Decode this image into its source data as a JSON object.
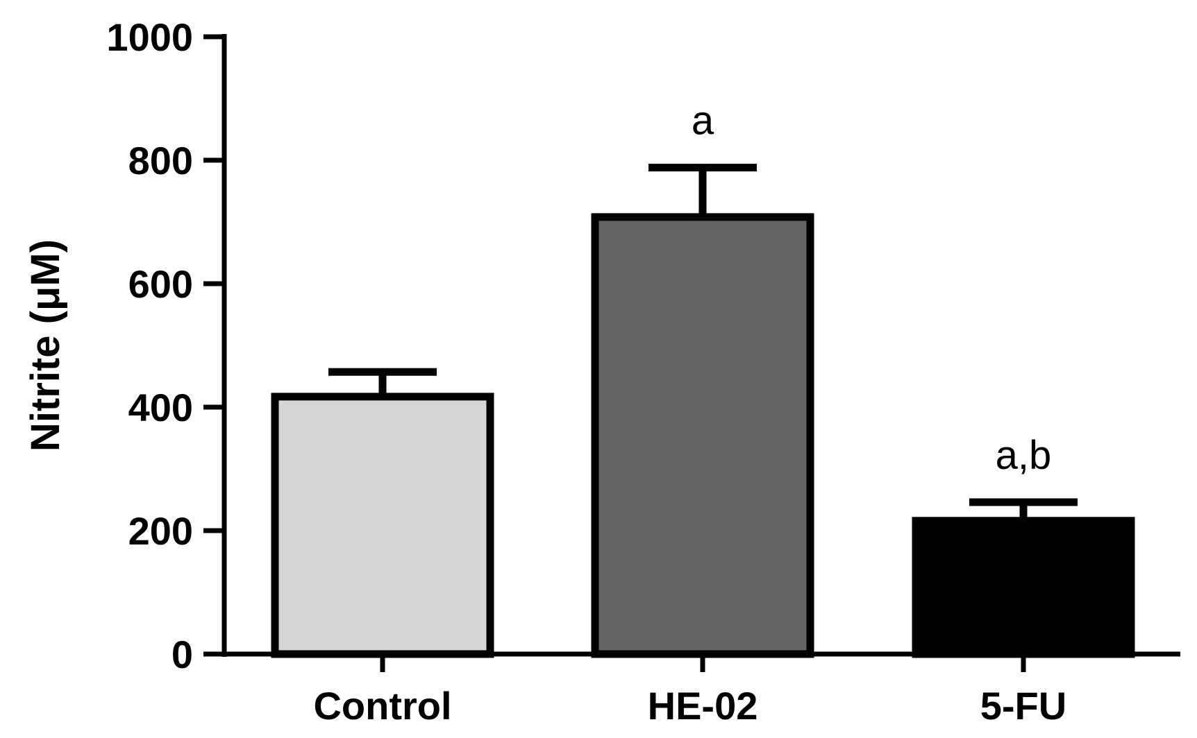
{
  "chart_data": {
    "type": "bar",
    "title": "",
    "xlabel": "",
    "ylabel": "Nitrite (μM)",
    "ylim": [
      0,
      1000
    ],
    "yticks": [
      0,
      200,
      400,
      600,
      800,
      1000
    ],
    "grid": false,
    "legend": "none",
    "categories": [
      "Control",
      "HE-02",
      "5-FU"
    ],
    "values": [
      417,
      708,
      216
    ],
    "errors": [
      40,
      80,
      30
    ],
    "annotations": [
      "",
      "a",
      "a,b"
    ],
    "colors": [
      "#d6d6d6",
      "#646464",
      "#000000"
    ],
    "edge_color": "#000000"
  }
}
